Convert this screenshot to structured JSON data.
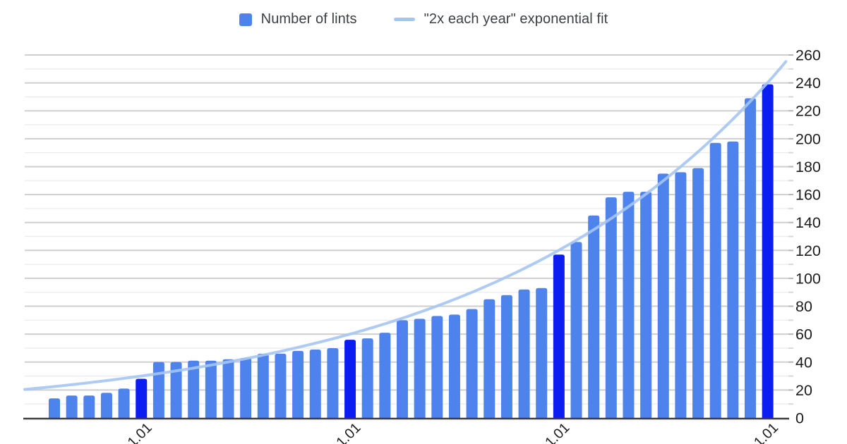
{
  "legend": {
    "bars_label": "Number of lints",
    "fit_label": "\"2x each year\" exponential fit"
  },
  "colors": {
    "bar": "#4e83ed",
    "bar_highlight": "#0b1df0",
    "fit_line": "#a5c5f3",
    "grid_major": "#cfcfcf",
    "grid_minor": "#ebebeb",
    "axis": "#3d3d3d",
    "tick_major": "#b5b5b5",
    "tick_minor": "#d8d8d8",
    "text": "#1c1c1c"
  },
  "chart_data": {
    "type": "bar",
    "title": "",
    "legend_entries": [
      "Number of lints",
      "\"2x each year\" exponential fit"
    ],
    "legend_position": "top",
    "grid": true,
    "y_axis": {
      "side": "right",
      "min": 0,
      "max": 260,
      "major_step": 20,
      "minor_step": 10,
      "labels": [
        "0",
        "20",
        "40",
        "60",
        "80",
        "100",
        "120",
        "140",
        "160",
        "180",
        "200",
        "220",
        "240",
        "260"
      ]
    },
    "x_axis": {
      "tick_label_fragments": [
        "1.01",
        "1.01",
        "1.01",
        "1.01"
      ],
      "labels_rotated_degrees": -45,
      "labels_cut_off_at_image_bottom": true
    },
    "series": [
      {
        "name": "Number of lints",
        "type": "bar",
        "values": [
          14,
          16,
          16,
          18,
          21,
          28,
          40,
          40,
          41,
          41,
          42,
          43,
          46,
          46,
          48,
          49,
          50,
          56,
          57,
          61,
          70,
          71,
          73,
          74,
          78,
          85,
          88,
          92,
          93,
          117,
          126,
          145,
          158,
          162,
          162,
          175,
          176,
          179,
          197,
          198,
          229,
          239
        ],
        "highlight_indices": [
          5,
          17,
          29,
          41
        ]
      },
      {
        "name": "\"2x each year\" exponential fit",
        "type": "line",
        "model": {
          "initial_value": 22.5,
          "doubling_period_points": 12
        }
      }
    ]
  }
}
